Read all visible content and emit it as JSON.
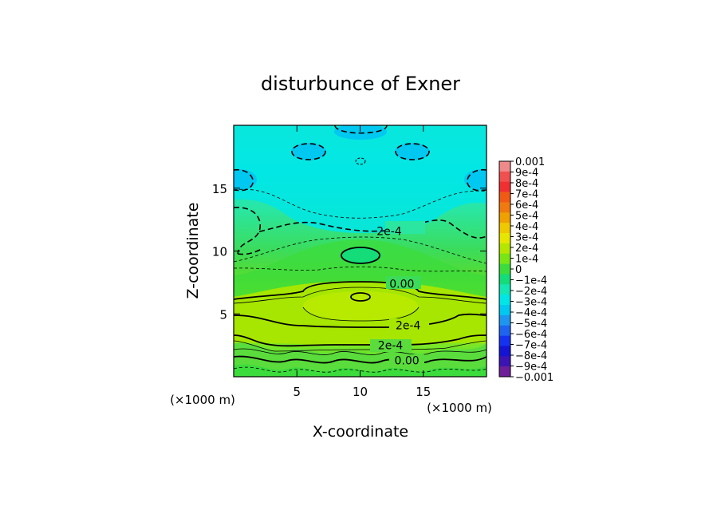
{
  "chart_data": {
    "type": "heatmap",
    "title": "disturbunce of Exner",
    "xlabel": "X-coordinate",
    "ylabel": "Z-coordinate",
    "x_unit": "(×1000 m)",
    "y_unit": "(×1000 m)",
    "xlim": [
      0,
      20
    ],
    "ylim": [
      0,
      20
    ],
    "x_ticks": [
      5,
      10,
      15
    ],
    "y_ticks": [
      5,
      10,
      15
    ],
    "colorbar": {
      "levels": [
        "0.001",
        "9e-4",
        "8e-4",
        "7e-4",
        "6e-4",
        "5e-4",
        "4e-4",
        "3e-4",
        "2e-4",
        "1e-4",
        "0",
        "-1e-4",
        "-2e-4",
        "-3e-4",
        "-4e-4",
        "-5e-4",
        "-6e-4",
        "-7e-4",
        "-8e-4",
        "-9e-4",
        "-0.001"
      ],
      "colors": [
        "#f08a8a",
        "#f05050",
        "#f03030",
        "#f05a14",
        "#f07a10",
        "#f0a000",
        "#f0c800",
        "#e6e600",
        "#b4e600",
        "#78e614",
        "#3cdc3c",
        "#14dc78",
        "#14e6b4",
        "#00e6e6",
        "#00c8f0",
        "#1e96f0",
        "#1e64f0",
        "#1432f0",
        "#1414d2",
        "#3c14b4",
        "#6e1e96"
      ]
    },
    "contour_labels": [
      {
        "text": "2e-4",
        "x": 12.3,
        "z": 11.6
      },
      {
        "text": "0.00",
        "x": 13.3,
        "z": 7.4
      },
      {
        "text": "2e-4",
        "x": 13.8,
        "z": 4.1
      },
      {
        "text": "2e-4",
        "x": 12.4,
        "z": 2.5
      },
      {
        "text": "0.00",
        "x": 13.7,
        "z": 1.3
      }
    ]
  }
}
